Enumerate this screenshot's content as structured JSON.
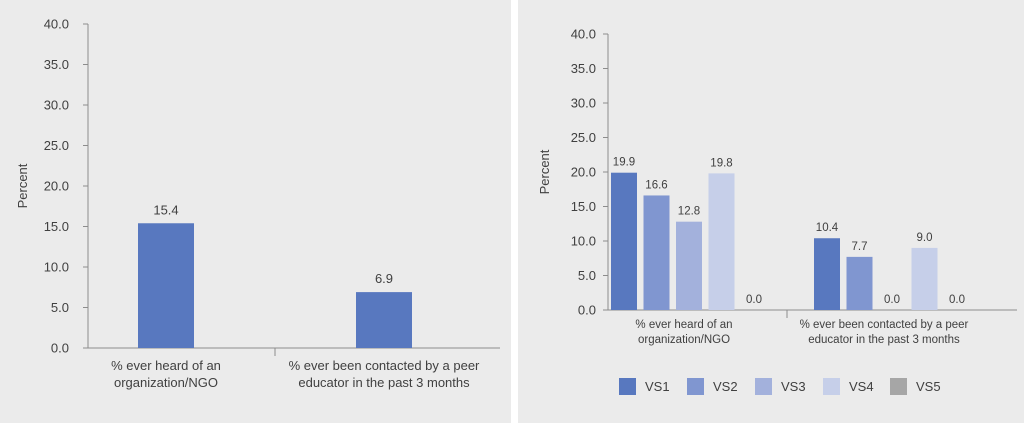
{
  "chart_data": [
    {
      "type": "bar",
      "categories": [
        "% ever heard of an organization/NGO",
        "% ever been contacted by a peer educator in the past 3 months"
      ],
      "category_lines": [
        [
          "% ever heard of an",
          "organization/NGO"
        ],
        [
          "% ever been contacted by a peer",
          "educator in the past 3 months"
        ]
      ],
      "values": [
        15.4,
        6.9
      ],
      "value_labels": [
        "15.4",
        "6.9"
      ],
      "ylabel": "Percent",
      "ylim": [
        0,
        40
      ],
      "yticks": [
        "0.0",
        "5.0",
        "10.0",
        "15.0",
        "20.0",
        "25.0",
        "30.0",
        "35.0",
        "40.0"
      ],
      "grid": false,
      "color": "#5878bf"
    },
    {
      "type": "bar",
      "categories": [
        "% ever heard of an organization/NGO",
        "% ever been contacted by a peer educator in the past 3 months"
      ],
      "category_lines": [
        [
          "% ever heard of an",
          "organization/NGO"
        ],
        [
          "% ever been contacted by a peer",
          "educator in the past 3 months"
        ]
      ],
      "series": [
        {
          "name": "VS1",
          "values": [
            19.9,
            10.4
          ],
          "labels": [
            "19.9",
            "10.4"
          ],
          "color": "#5878bf"
        },
        {
          "name": "VS2",
          "values": [
            16.6,
            7.7
          ],
          "labels": [
            "16.6",
            "7.7"
          ],
          "color": "#8096d0"
        },
        {
          "name": "VS3",
          "values": [
            12.8,
            0.0
          ],
          "labels": [
            "12.8",
            "0.0"
          ],
          "color": "#a3b1dc"
        },
        {
          "name": "VS4",
          "values": [
            19.8,
            9.0
          ],
          "labels": [
            "19.8",
            "9.0"
          ],
          "color": "#c6cfe9"
        },
        {
          "name": "VS5",
          "values": [
            0.0,
            0.0
          ],
          "labels": [
            "0.0",
            "0.0"
          ],
          "color": "#a6a6a6"
        }
      ],
      "ylabel": "Percent",
      "ylim": [
        0,
        40
      ],
      "yticks": [
        "0.0",
        "5.0",
        "10.0",
        "15.0",
        "20.0",
        "25.0",
        "30.0",
        "35.0",
        "40.0"
      ],
      "grid": false,
      "legend": "bottom"
    }
  ]
}
